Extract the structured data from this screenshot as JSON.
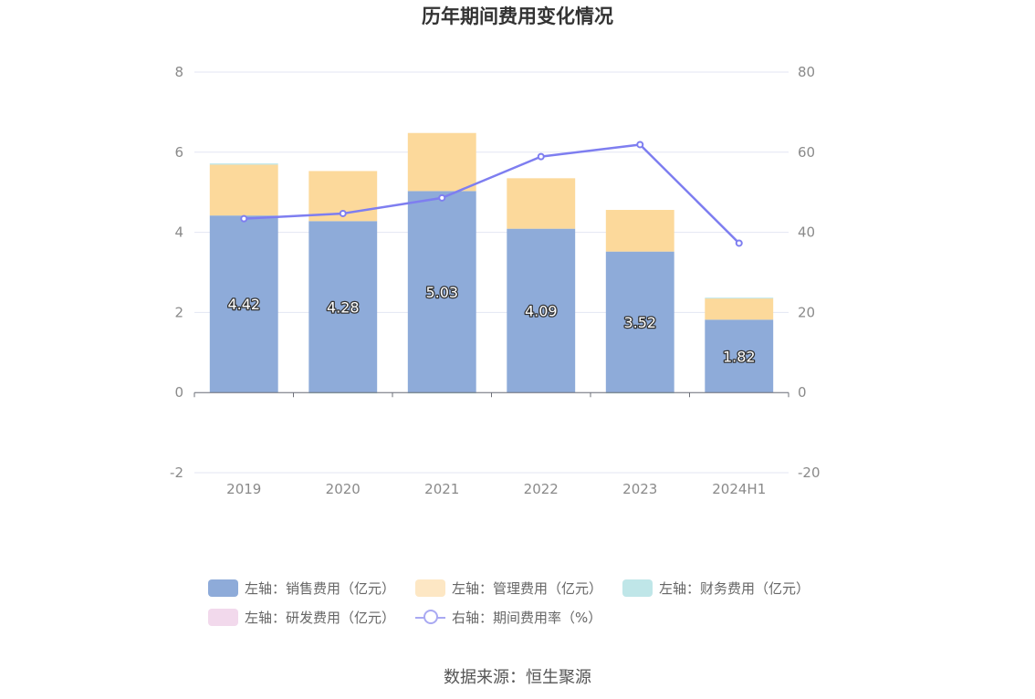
{
  "chart_data": {
    "type": "bar",
    "title": "历年期间费用变化情况",
    "categories": [
      "2019",
      "2020",
      "2021",
      "2022",
      "2023",
      "2024H1"
    ],
    "left_axis": {
      "ylim": [
        -2,
        8
      ],
      "ticks": [
        "-2",
        "0",
        "2",
        "4",
        "6",
        "8"
      ]
    },
    "right_axis": {
      "ylim": [
        -20,
        80
      ],
      "ticks": [
        "-20",
        "0",
        "20",
        "40",
        "60",
        "80"
      ]
    },
    "series": [
      {
        "name": "左轴：销售费用（亿元）",
        "type": "bar",
        "axis": "left",
        "color": "#8eabd9",
        "values": [
          4.42,
          4.28,
          5.03,
          4.09,
          3.52,
          1.82
        ],
        "labels": [
          "4.42",
          "4.28",
          "5.03",
          "4.09",
          "3.52",
          "1.82"
        ]
      },
      {
        "name": "左轴：管理费用（亿元）",
        "type": "bar",
        "axis": "left",
        "color": "#fcd99b",
        "values": [
          1.27,
          1.25,
          1.45,
          1.26,
          1.04,
          0.53
        ]
      },
      {
        "name": "左轴：财务费用（亿元）",
        "type": "bar",
        "axis": "left",
        "color": "#bfe6e8",
        "values": [
          0.03,
          -0.02,
          -0.02,
          0.0,
          -0.02,
          0.02
        ]
      },
      {
        "name": "左轴：研发费用（亿元）",
        "type": "bar",
        "axis": "left",
        "color": "#f2d9ec",
        "values": [
          0,
          0,
          0,
          0,
          0,
          0
        ]
      },
      {
        "name": "右轴：期间费用率（%）",
        "type": "line",
        "axis": "right",
        "color": "#7e7ef0",
        "values": [
          43.4,
          44.7,
          48.6,
          58.9,
          61.9,
          37.3
        ]
      }
    ],
    "grid": true,
    "legend_position": "bottom"
  },
  "source": "数据来源：恒生聚源"
}
